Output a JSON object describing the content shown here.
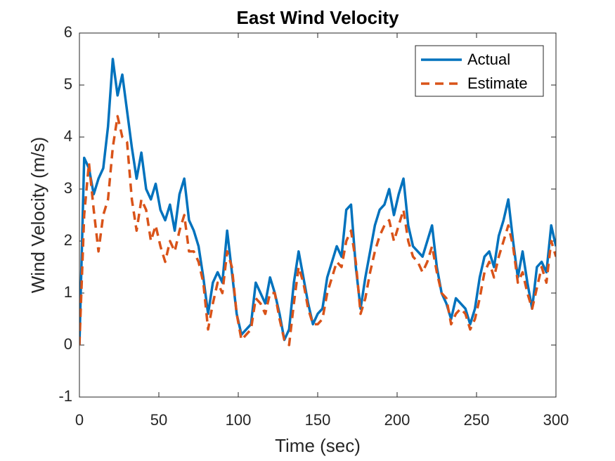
{
  "chart_data": {
    "type": "line",
    "title": "East Wind Velocity",
    "xlabel": "Time (sec)",
    "ylabel": "Wind Velocity (m/s)",
    "x": [
      0,
      3,
      6,
      9,
      12,
      15,
      18,
      21,
      24,
      27,
      30,
      33,
      36,
      39,
      42,
      45,
      48,
      51,
      54,
      57,
      60,
      63,
      66,
      69,
      72,
      75,
      78,
      81,
      84,
      87,
      90,
      93,
      96,
      99,
      102,
      105,
      108,
      111,
      114,
      117,
      120,
      123,
      126,
      129,
      132,
      135,
      138,
      141,
      144,
      147,
      150,
      153,
      156,
      159,
      162,
      165,
      168,
      171,
      174,
      177,
      180,
      183,
      186,
      189,
      192,
      195,
      198,
      201,
      204,
      207,
      210,
      213,
      216,
      219,
      222,
      225,
      228,
      231,
      234,
      237,
      240,
      243,
      246,
      249,
      252,
      255,
      258,
      261,
      264,
      267,
      270,
      273,
      276,
      279,
      282,
      285,
      288,
      291,
      294,
      297,
      300
    ],
    "series": [
      {
        "name": "Actual",
        "color": "#0072BD",
        "dashed": false,
        "values": [
          0,
          3.6,
          3.4,
          2.9,
          3.2,
          3.4,
          4.2,
          5.5,
          4.8,
          5.2,
          4.5,
          3.8,
          3.2,
          3.7,
          3.0,
          2.8,
          3.1,
          2.6,
          2.4,
          2.7,
          2.2,
          2.9,
          3.2,
          2.4,
          2.2,
          1.9,
          1.3,
          0.6,
          1.2,
          1.4,
          1.2,
          2.2,
          1.4,
          0.6,
          0.2,
          0.3,
          0.4,
          1.2,
          1.0,
          0.8,
          1.3,
          1.0,
          0.6,
          0.1,
          0.3,
          1.2,
          1.8,
          1.3,
          0.8,
          0.4,
          0.6,
          0.7,
          1.3,
          1.6,
          1.9,
          1.7,
          2.6,
          2.7,
          1.5,
          0.7,
          1.3,
          1.8,
          2.3,
          2.6,
          2.7,
          3.0,
          2.5,
          2.9,
          3.2,
          2.3,
          1.9,
          1.8,
          1.7,
          2.0,
          2.3,
          1.5,
          1.0,
          0.8,
          0.5,
          0.9,
          0.8,
          0.7,
          0.4,
          0.7,
          1.3,
          1.7,
          1.8,
          1.5,
          2.1,
          2.4,
          2.8,
          2.0,
          1.3,
          1.8,
          1.2,
          0.7,
          1.5,
          1.6,
          1.4,
          2.3,
          1.9
        ]
      },
      {
        "name": "Estimate",
        "color": "#D95319",
        "dashed": true,
        "values": [
          0,
          2.5,
          3.5,
          2.6,
          1.8,
          2.5,
          2.8,
          3.8,
          4.4,
          4.0,
          3.9,
          2.8,
          2.2,
          2.8,
          2.6,
          2.0,
          2.3,
          1.9,
          1.6,
          2.0,
          1.8,
          2.2,
          2.5,
          1.8,
          1.8,
          1.6,
          1.2,
          0.3,
          0.8,
          1.2,
          1.0,
          1.8,
          1.5,
          0.6,
          0.1,
          0.2,
          0.3,
          0.9,
          0.8,
          0.6,
          1.0,
          1.0,
          0.5,
          0.1,
          0.0,
          0.8,
          1.5,
          1.2,
          0.7,
          0.4,
          0.4,
          0.5,
          1.0,
          1.3,
          1.6,
          1.5,
          2.0,
          2.2,
          1.6,
          0.6,
          0.9,
          1.4,
          1.8,
          2.1,
          2.3,
          2.4,
          2.0,
          2.3,
          2.6,
          2.0,
          1.7,
          1.6,
          1.4,
          1.6,
          1.9,
          1.4,
          1.0,
          0.9,
          0.4,
          0.6,
          0.7,
          0.6,
          0.3,
          0.5,
          0.9,
          1.4,
          1.6,
          1.3,
          1.7,
          2.0,
          2.3,
          1.9,
          1.2,
          1.4,
          1.0,
          0.7,
          1.1,
          1.5,
          1.2,
          2.0,
          1.7
        ]
      }
    ],
    "xlim": [
      0,
      300
    ],
    "xticks": [
      0,
      50,
      100,
      150,
      200,
      250,
      300
    ],
    "ylim": [
      -1,
      6
    ],
    "yticks": [
      -1,
      0,
      1,
      2,
      3,
      4,
      5,
      6
    ],
    "legend": "northeast",
    "grid": false
  }
}
